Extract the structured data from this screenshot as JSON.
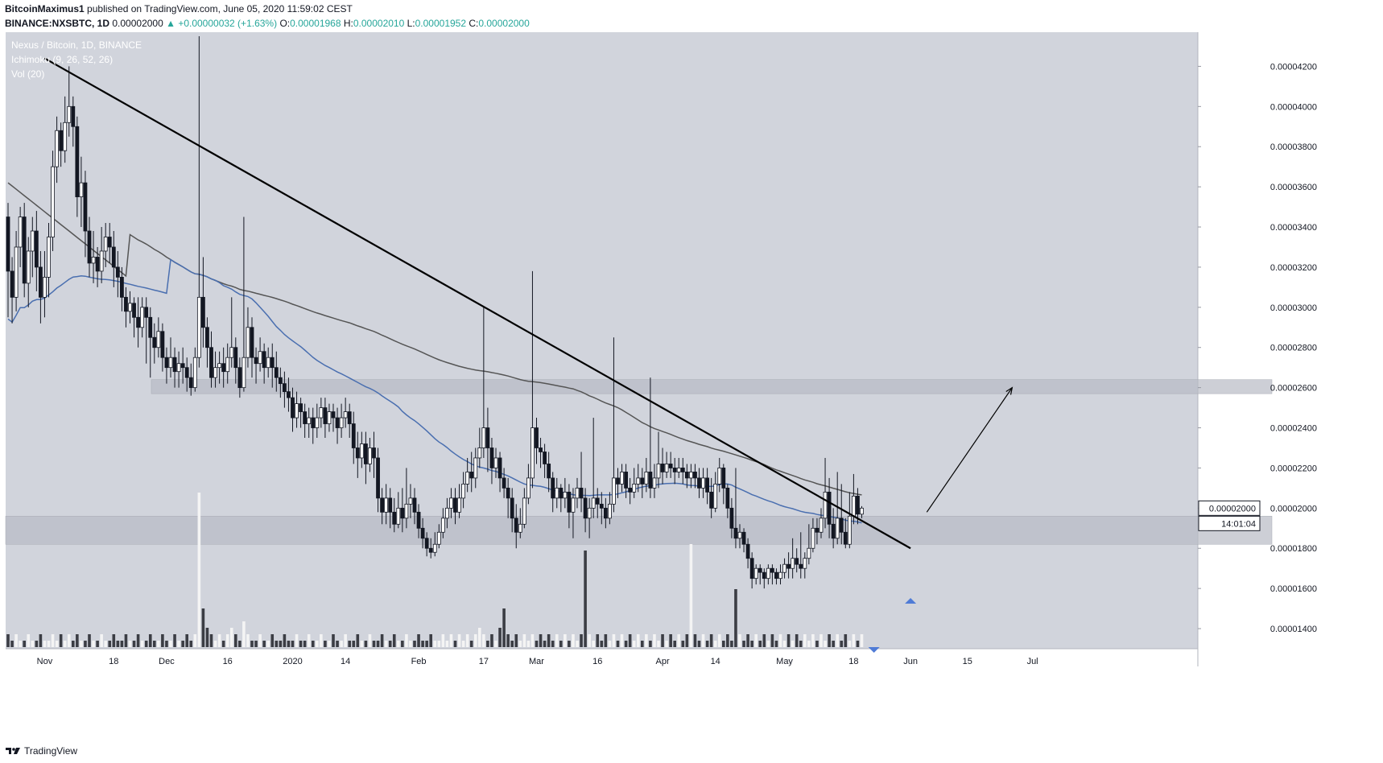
{
  "header": {
    "author": "BitcoinMaximus1",
    "published_text": "published on TradingView.com, June 05, 2020 11:59:02 CEST",
    "symbol": "BINANCE:NXSBTC, 1D",
    "price": "0.00002000",
    "change": "▲ +0.00000032 (+1.63%)",
    "o_label": "O:",
    "o_value": "0.00001968",
    "h_label": "H:",
    "h_value": "0.00002010",
    "l_label": "L:",
    "l_value": "0.00001952",
    "c_label": "C:",
    "c_value": "0.00002000"
  },
  "legend": {
    "title": "Nexus / Bitcoin, 1D, BINANCE",
    "ichimoku": "Ichimoku (9, 26, 52, 26)",
    "vol": "Vol (20)"
  },
  "footer": {
    "brand": "TradingView"
  },
  "colors": {
    "background": "#d1d4dc",
    "up_candle": "#ffffff",
    "down_candle": "#131722",
    "blue_ma": "#4a6fb0",
    "gray_ma": "#555555",
    "zone": "#b8bbc4",
    "arrow": "#4f7bd6"
  },
  "chart_data": {
    "type": "candlestick",
    "title": "Nexus / Bitcoin, 1D, BINANCE",
    "y_ticks": [
      "0.00004200",
      "0.00004000",
      "0.00003800",
      "0.00003600",
      "0.00003400",
      "0.00003200",
      "0.00003000",
      "0.00002800",
      "0.00002600",
      "0.00002400",
      "0.00002200",
      "0.00002000",
      "0.00001800",
      "0.00001600",
      "0.00001400"
    ],
    "ylim": [
      1.3e-05,
      4.37e-05
    ],
    "x_ticks": [
      "Nov",
      "18",
      "Dec",
      "16",
      "2020",
      "14",
      "Feb",
      "17",
      "Mar",
      "16",
      "Apr",
      "14",
      "May",
      "18",
      "Jun",
      "15",
      "Jul"
    ],
    "last_price_label": "0.00002000",
    "countdown_label": "14:01:04",
    "resistance_zone": [
      2.57e-05,
      2.64e-05
    ],
    "support_zone": [
      1.82e-05,
      1.96e-05
    ],
    "start_date": "2019-10-23",
    "candles": [
      [
        3.45,
        3.18,
        2.95,
        3.52
      ],
      [
        3.18,
        3.05,
        2.92,
        3.25
      ],
      [
        3.05,
        3.3,
        2.98,
        3.38
      ],
      [
        3.3,
        3.45,
        3.2,
        3.5
      ],
      [
        3.45,
        3.12,
        3.05,
        3.52
      ],
      [
        3.12,
        3.28,
        3.0,
        3.35
      ],
      [
        3.28,
        3.38,
        3.15,
        3.45
      ],
      [
        3.38,
        3.2,
        3.08,
        3.48
      ],
      [
        3.2,
        3.05,
        2.92,
        3.28
      ],
      [
        3.05,
        3.15,
        2.95,
        3.28
      ],
      [
        3.15,
        3.35,
        3.05,
        3.42
      ],
      [
        3.35,
        3.7,
        3.28,
        3.78
      ],
      [
        3.7,
        3.88,
        3.62,
        3.95
      ],
      [
        3.88,
        3.78,
        3.7,
        3.92
      ],
      [
        3.78,
        3.92,
        3.72,
        4.05
      ],
      [
        3.92,
        4.0,
        3.85,
        4.2
      ],
      [
        4.0,
        3.9,
        3.8,
        4.05
      ],
      [
        3.9,
        3.55,
        3.45,
        3.95
      ],
      [
        3.55,
        3.62,
        3.4,
        3.75
      ],
      [
        3.62,
        3.38,
        3.25,
        3.68
      ],
      [
        3.38,
        3.22,
        3.15,
        3.45
      ],
      [
        3.22,
        3.25,
        3.12,
        3.38
      ],
      [
        3.25,
        3.18,
        3.1,
        3.3
      ],
      [
        3.18,
        3.28,
        3.12,
        3.4
      ],
      [
        3.28,
        3.35,
        3.2,
        3.42
      ],
      [
        3.35,
        3.3,
        3.22,
        3.42
      ],
      [
        3.3,
        3.2,
        3.1,
        3.38
      ],
      [
        3.2,
        3.15,
        3.05,
        3.28
      ],
      [
        3.15,
        3.05,
        2.98,
        3.2
      ],
      [
        3.05,
        2.98,
        2.9,
        3.1
      ],
      [
        2.98,
        3.02,
        2.92,
        3.08
      ],
      [
        3.02,
        2.95,
        2.85,
        3.05
      ],
      [
        2.95,
        2.9,
        2.8,
        3.05
      ],
      [
        2.9,
        3.0,
        2.85,
        3.05
      ],
      [
        3.0,
        2.95,
        2.72,
        3.05
      ],
      [
        2.95,
        2.85,
        2.65,
        3.0
      ],
      [
        2.85,
        2.8,
        2.72,
        2.92
      ],
      [
        2.8,
        2.88,
        2.75,
        2.95
      ],
      [
        2.88,
        2.75,
        2.68,
        2.92
      ],
      [
        2.75,
        2.7,
        2.62,
        2.8
      ],
      [
        2.7,
        2.75,
        2.65,
        2.85
      ],
      [
        2.75,
        2.68,
        2.6,
        2.8
      ],
      [
        2.68,
        2.72,
        2.6,
        2.78
      ],
      [
        2.72,
        2.7,
        2.62,
        2.8
      ],
      [
        2.7,
        2.65,
        2.58,
        2.75
      ],
      [
        2.65,
        2.6,
        2.56,
        2.72
      ],
      [
        2.6,
        2.75,
        2.58,
        2.8
      ],
      [
        2.75,
        3.05,
        2.7,
        4.35
      ],
      [
        3.05,
        2.9,
        2.8,
        3.25
      ],
      [
        2.9,
        2.8,
        2.7,
        2.95
      ],
      [
        2.8,
        2.65,
        2.6,
        2.88
      ],
      [
        2.65,
        2.7,
        2.6,
        2.78
      ],
      [
        2.7,
        2.72,
        2.62,
        2.78
      ],
      [
        2.72,
        2.68,
        2.6,
        2.8
      ],
      [
        2.68,
        2.75,
        2.62,
        2.82
      ],
      [
        2.75,
        2.8,
        2.7,
        3.05
      ],
      [
        2.8,
        2.7,
        2.62,
        2.85
      ],
      [
        2.7,
        2.6,
        2.55,
        2.75
      ],
      [
        2.6,
        2.75,
        2.58,
        3.45
      ],
      [
        2.75,
        2.9,
        2.7,
        3.0
      ],
      [
        2.9,
        2.75,
        2.65,
        2.95
      ],
      [
        2.75,
        2.72,
        2.62,
        2.8
      ],
      [
        2.72,
        2.78,
        2.68,
        2.85
      ],
      [
        2.78,
        2.7,
        2.62,
        2.82
      ],
      [
        2.7,
        2.75,
        2.65,
        2.8
      ],
      [
        2.75,
        2.7,
        2.6,
        2.82
      ],
      [
        2.7,
        2.65,
        2.58,
        2.78
      ],
      [
        2.65,
        2.62,
        2.55,
        2.7
      ],
      [
        2.62,
        2.58,
        2.5,
        2.68
      ],
      [
        2.58,
        2.55,
        2.48,
        2.65
      ],
      [
        2.55,
        2.45,
        2.38,
        2.6
      ],
      [
        2.45,
        2.52,
        2.4,
        2.58
      ],
      [
        2.52,
        2.48,
        2.4,
        2.55
      ],
      [
        2.48,
        2.42,
        2.35,
        2.52
      ],
      [
        2.42,
        2.45,
        2.35,
        2.5
      ],
      [
        2.45,
        2.4,
        2.32,
        2.5
      ],
      [
        2.4,
        2.45,
        2.35,
        2.52
      ],
      [
        2.45,
        2.5,
        2.4,
        2.55
      ],
      [
        2.5,
        2.42,
        2.35,
        2.55
      ],
      [
        2.42,
        2.48,
        2.38,
        2.52
      ],
      [
        2.48,
        2.45,
        2.38,
        2.52
      ],
      [
        2.45,
        2.4,
        2.32,
        2.5
      ],
      [
        2.4,
        2.45,
        2.35,
        2.52
      ],
      [
        2.45,
        2.48,
        2.4,
        2.55
      ],
      [
        2.48,
        2.42,
        2.35,
        2.52
      ],
      [
        2.42,
        2.3,
        2.22,
        2.48
      ],
      [
        2.3,
        2.25,
        2.15,
        2.38
      ],
      [
        2.25,
        2.32,
        2.2,
        2.38
      ],
      [
        2.32,
        2.22,
        2.12,
        2.38
      ],
      [
        2.22,
        2.3,
        2.18,
        2.35
      ],
      [
        2.3,
        2.25,
        2.15,
        2.38
      ],
      [
        2.25,
        2.05,
        1.98,
        2.3
      ],
      [
        2.05,
        1.98,
        1.92,
        2.1
      ],
      [
        1.98,
        2.05,
        1.92,
        2.12
      ],
      [
        2.05,
        1.98,
        1.9,
        2.1
      ],
      [
        1.98,
        1.92,
        1.88,
        2.05
      ],
      [
        1.92,
        2.0,
        1.9,
        2.08
      ],
      [
        2.0,
        1.95,
        1.88,
        2.1
      ],
      [
        1.95,
        2.02,
        1.9,
        2.2
      ],
      [
        2.02,
        2.05,
        1.95,
        2.12
      ],
      [
        2.05,
        1.98,
        1.92,
        2.1
      ],
      [
        1.98,
        1.9,
        1.85,
        2.02
      ],
      [
        1.9,
        1.85,
        1.8,
        1.95
      ],
      [
        1.85,
        1.8,
        1.76,
        1.88
      ],
      [
        1.8,
        1.78,
        1.75,
        1.85
      ],
      [
        1.78,
        1.82,
        1.76,
        1.88
      ],
      [
        1.82,
        1.88,
        1.8,
        1.92
      ],
      [
        1.88,
        1.95,
        1.85,
        2.0
      ],
      [
        1.95,
        2.0,
        1.9,
        2.05
      ],
      [
        2.0,
        2.05,
        1.95,
        2.1
      ],
      [
        2.05,
        1.98,
        1.92,
        2.1
      ],
      [
        1.98,
        2.05,
        1.95,
        2.12
      ],
      [
        2.05,
        2.12,
        2.0,
        2.18
      ],
      [
        2.12,
        2.18,
        2.08,
        2.25
      ],
      [
        2.18,
        2.15,
        2.08,
        2.28
      ],
      [
        2.15,
        2.25,
        2.1,
        2.3
      ],
      [
        2.25,
        2.3,
        2.2,
        2.4
      ],
      [
        2.3,
        2.4,
        2.25,
        3.0
      ],
      [
        2.4,
        2.3,
        2.18,
        2.5
      ],
      [
        2.3,
        2.2,
        2.12,
        2.35
      ],
      [
        2.2,
        2.25,
        2.15,
        2.3
      ],
      [
        2.25,
        2.15,
        2.08,
        2.28
      ],
      [
        2.15,
        2.1,
        2.05,
        2.2
      ],
      [
        2.1,
        2.05,
        1.95,
        2.15
      ],
      [
        2.05,
        1.95,
        1.88,
        2.1
      ],
      [
        1.95,
        1.88,
        1.8,
        2.02
      ],
      [
        1.88,
        1.92,
        1.85,
        2.0
      ],
      [
        1.92,
        2.05,
        1.9,
        2.1
      ],
      [
        2.05,
        2.15,
        2.02,
        2.22
      ],
      [
        2.15,
        2.4,
        2.1,
        3.18
      ],
      [
        2.4,
        2.3,
        2.22,
        2.45
      ],
      [
        2.3,
        2.28,
        2.2,
        2.35
      ],
      [
        2.28,
        2.22,
        2.15,
        2.32
      ],
      [
        2.22,
        2.15,
        2.08,
        2.28
      ],
      [
        2.15,
        2.05,
        1.98,
        2.18
      ],
      [
        2.05,
        2.1,
        2.0,
        2.15
      ],
      [
        2.1,
        2.05,
        1.98,
        2.12
      ],
      [
        2.05,
        2.08,
        2.0,
        2.15
      ],
      [
        2.08,
        1.98,
        1.9,
        2.12
      ],
      [
        1.98,
        2.05,
        1.85,
        2.1
      ],
      [
        2.05,
        2.1,
        2.0,
        2.15
      ],
      [
        2.1,
        2.05,
        1.98,
        2.28
      ],
      [
        2.05,
        1.95,
        1.88,
        2.1
      ],
      [
        1.95,
        2.0,
        1.85,
        2.05
      ],
      [
        2.0,
        2.05,
        1.95,
        2.45
      ],
      [
        2.05,
        2.02,
        1.95,
        2.1
      ],
      [
        2.02,
        2.0,
        1.92,
        2.08
      ],
      [
        2.0,
        1.95,
        1.9,
        2.05
      ],
      [
        1.95,
        2.02,
        1.92,
        2.08
      ],
      [
        2.02,
        2.15,
        1.98,
        2.85
      ],
      [
        2.15,
        2.12,
        2.05,
        2.2
      ],
      [
        2.12,
        2.18,
        2.08,
        2.22
      ],
      [
        2.18,
        2.1,
        2.05,
        2.22
      ],
      [
        2.1,
        2.08,
        2.02,
        2.15
      ],
      [
        2.08,
        2.12,
        2.05,
        2.2
      ],
      [
        2.12,
        2.15,
        2.08,
        2.22
      ],
      [
        2.15,
        2.12,
        2.05,
        2.2
      ],
      [
        2.12,
        2.18,
        2.08,
        2.25
      ],
      [
        2.18,
        2.1,
        2.05,
        2.65
      ],
      [
        2.1,
        2.15,
        2.05,
        2.22
      ],
      [
        2.15,
        2.22,
        2.1,
        2.38
      ],
      [
        2.22,
        2.18,
        2.12,
        2.3
      ],
      [
        2.18,
        2.22,
        2.15,
        2.28
      ],
      [
        2.22,
        2.2,
        2.15,
        2.28
      ],
      [
        2.2,
        2.18,
        2.12,
        2.25
      ],
      [
        2.18,
        2.2,
        2.15,
        2.25
      ],
      [
        2.2,
        2.18,
        2.12,
        2.25
      ],
      [
        2.18,
        2.15,
        2.1,
        2.22
      ],
      [
        2.15,
        2.18,
        2.1,
        2.22
      ],
      [
        2.18,
        2.15,
        2.1,
        2.22
      ],
      [
        2.15,
        2.1,
        2.05,
        2.2
      ],
      [
        2.1,
        2.15,
        2.05,
        2.2
      ],
      [
        2.15,
        2.08,
        2.02,
        2.2
      ],
      [
        2.08,
        2.0,
        1.95,
        2.15
      ],
      [
        2.0,
        2.12,
        1.98,
        2.18
      ],
      [
        2.12,
        2.2,
        2.08,
        2.25
      ],
      [
        2.2,
        2.1,
        2.02,
        2.22
      ],
      [
        2.1,
        2.0,
        1.95,
        2.12
      ],
      [
        2.0,
        1.9,
        1.85,
        2.05
      ],
      [
        1.9,
        1.85,
        1.8,
        2.2
      ],
      [
        1.85,
        1.88,
        1.8,
        1.92
      ],
      [
        1.88,
        1.82,
        1.78,
        1.9
      ],
      [
        1.82,
        1.75,
        1.7,
        1.85
      ],
      [
        1.75,
        1.65,
        1.6,
        1.78
      ],
      [
        1.65,
        1.7,
        1.62,
        1.72
      ],
      [
        1.7,
        1.68,
        1.62,
        1.72
      ],
      [
        1.68,
        1.65,
        1.6,
        1.7
      ],
      [
        1.65,
        1.7,
        1.62,
        1.72
      ],
      [
        1.7,
        1.68,
        1.62,
        1.72
      ],
      [
        1.68,
        1.65,
        1.62,
        1.7
      ],
      [
        1.65,
        1.68,
        1.62,
        1.72
      ],
      [
        1.68,
        1.72,
        1.65,
        1.75
      ],
      [
        1.72,
        1.7,
        1.65,
        1.78
      ],
      [
        1.7,
        1.75,
        1.65,
        1.85
      ],
      [
        1.75,
        1.72,
        1.68,
        1.8
      ],
      [
        1.72,
        1.7,
        1.65,
        1.88
      ],
      [
        1.7,
        1.75,
        1.65,
        1.78
      ],
      [
        1.75,
        1.8,
        1.72,
        1.92
      ],
      [
        1.8,
        1.9,
        1.78,
        1.95
      ],
      [
        1.9,
        1.88,
        1.82,
        1.95
      ],
      [
        1.88,
        1.95,
        1.85,
        2.0
      ],
      [
        1.95,
        2.08,
        1.9,
        2.25
      ],
      [
        2.08,
        1.92,
        1.85,
        2.15
      ],
      [
        1.92,
        1.85,
        1.8,
        2.0
      ],
      [
        1.85,
        1.95,
        1.82,
        2.18
      ],
      [
        1.95,
        1.88,
        1.82,
        2.12
      ],
      [
        1.88,
        1.82,
        1.8,
        1.95
      ],
      [
        1.82,
        1.96,
        1.8,
        2.08
      ],
      [
        1.96,
        2.06,
        1.92,
        2.17
      ],
      [
        2.06,
        1.97,
        1.92,
        2.1
      ],
      [
        1.97,
        2.0,
        1.95,
        2.01
      ]
    ],
    "volumes": [
      2,
      1,
      2,
      1,
      1,
      2,
      1,
      1,
      2,
      1,
      1,
      2,
      1,
      2,
      1,
      2,
      1,
      2,
      1,
      1,
      2,
      1,
      1,
      2,
      1,
      1,
      2,
      1,
      1,
      2,
      1,
      1,
      2,
      1,
      1,
      2,
      1,
      1,
      2,
      1,
      1,
      2,
      1,
      1,
      2,
      1,
      2,
      24,
      6,
      3,
      2,
      1,
      2,
      1,
      2,
      3,
      2,
      1,
      4,
      2,
      1,
      1,
      2,
      1,
      1,
      2,
      1,
      1,
      2,
      1,
      1,
      2,
      1,
      1,
      2,
      1,
      1,
      2,
      1,
      1,
      2,
      1,
      1,
      2,
      1,
      1,
      2,
      1,
      1,
      2,
      1,
      1,
      2,
      1,
      1,
      2,
      1,
      1,
      2,
      1,
      1,
      2,
      1,
      1,
      2,
      1,
      1,
      2,
      1,
      2,
      1,
      2,
      1,
      2,
      1,
      2,
      3,
      2,
      1,
      2,
      1,
      3,
      6,
      2,
      1,
      2,
      1,
      2,
      1,
      2,
      1,
      2,
      1,
      2,
      1,
      2,
      1,
      2,
      1,
      2,
      1,
      2,
      15,
      2,
      1,
      2,
      1,
      2,
      1,
      2,
      1,
      2,
      1,
      2,
      1,
      2,
      1,
      2,
      1,
      2,
      1,
      2,
      1,
      2,
      1,
      2,
      1,
      2,
      16,
      2,
      1,
      2,
      1,
      2,
      1,
      2,
      1,
      2,
      1,
      9,
      2,
      1,
      2,
      1,
      2,
      1,
      2,
      1,
      2,
      1,
      2,
      1,
      2,
      1,
      2,
      1,
      2,
      1,
      2,
      1,
      2,
      1,
      2,
      1,
      2,
      1,
      2,
      1,
      2,
      1,
      2,
      1,
      2,
      1,
      2,
      1,
      2,
      1,
      2,
      1,
      2,
      1,
      2,
      1,
      2,
      1,
      3,
      2,
      1,
      9,
      2,
      1,
      3,
      2,
      1,
      2,
      2
    ],
    "trendline_points": [
      [
        "2019-11-01",
        4.24
      ],
      [
        "2020-06-01",
        1.8
      ]
    ],
    "projection": [
      [
        "2020-06-05",
        1.98
      ],
      [
        "2020-06-26",
        2.6
      ]
    ]
  }
}
